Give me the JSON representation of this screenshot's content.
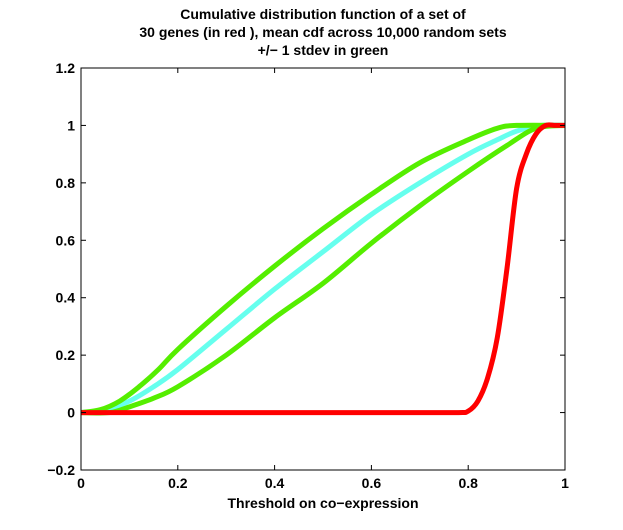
{
  "chart_data": {
    "type": "line",
    "title_lines": [
      "Cumulative distribution function of a set of",
      "30 genes (in red ), mean cdf across 10,000 random sets",
      "+/− 1 stdev in green"
    ],
    "xlabel": "Threshold on co−expression",
    "ylabel": "",
    "xlim": [
      0,
      1
    ],
    "ylim": [
      -0.2,
      1.2
    ],
    "x_ticks": [
      0,
      0.2,
      0.4,
      0.6,
      0.8,
      1
    ],
    "x_tick_labels": [
      "0",
      "0.2",
      "0.4",
      "0.6",
      "0.8",
      "1"
    ],
    "y_ticks": [
      -0.2,
      0,
      0.2,
      0.4,
      0.6,
      0.8,
      1,
      1.2
    ],
    "y_tick_labels": [
      "−0.2",
      "0",
      "0.2",
      "0.4",
      "0.6",
      "0.8",
      "1",
      "1.2"
    ],
    "grid": false,
    "legend": "none",
    "series": [
      {
        "color": "#ff0000",
        "points": [
          [
            0,
            0
          ],
          [
            0.1,
            0
          ],
          [
            0.2,
            0
          ],
          [
            0.3,
            0
          ],
          [
            0.4,
            0
          ],
          [
            0.5,
            0
          ],
          [
            0.6,
            0
          ],
          [
            0.7,
            0
          ],
          [
            0.78,
            0
          ],
          [
            0.8,
            0.005
          ],
          [
            0.82,
            0.04
          ],
          [
            0.84,
            0.12
          ],
          [
            0.86,
            0.26
          ],
          [
            0.88,
            0.5
          ],
          [
            0.9,
            0.78
          ],
          [
            0.92,
            0.9
          ],
          [
            0.94,
            0.97
          ],
          [
            0.96,
            1
          ],
          [
            0.98,
            1
          ],
          [
            1,
            1
          ]
        ]
      },
      {
        "color": "#66ffee",
        "points": [
          [
            0,
            0
          ],
          [
            0.05,
            0.01
          ],
          [
            0.1,
            0.04
          ],
          [
            0.15,
            0.09
          ],
          [
            0.2,
            0.15
          ],
          [
            0.3,
            0.29
          ],
          [
            0.4,
            0.43
          ],
          [
            0.5,
            0.56
          ],
          [
            0.6,
            0.69
          ],
          [
            0.7,
            0.8
          ],
          [
            0.8,
            0.9
          ],
          [
            0.86,
            0.95
          ],
          [
            0.9,
            0.98
          ],
          [
            0.95,
            1
          ],
          [
            1,
            1
          ]
        ]
      },
      {
        "color": "#55ee00",
        "points": [
          [
            0,
            0
          ],
          [
            0.04,
            0.01
          ],
          [
            0.08,
            0.04
          ],
          [
            0.12,
            0.09
          ],
          [
            0.16,
            0.15
          ],
          [
            0.2,
            0.22
          ],
          [
            0.3,
            0.37
          ],
          [
            0.4,
            0.51
          ],
          [
            0.5,
            0.64
          ],
          [
            0.6,
            0.76
          ],
          [
            0.7,
            0.87
          ],
          [
            0.8,
            0.95
          ],
          [
            0.86,
            0.99
          ],
          [
            0.9,
            1
          ],
          [
            1,
            1
          ]
        ]
      },
      {
        "color": "#55ee00",
        "points": [
          [
            0,
            0
          ],
          [
            0.06,
            0
          ],
          [
            0.1,
            0.02
          ],
          [
            0.15,
            0.05
          ],
          [
            0.2,
            0.09
          ],
          [
            0.3,
            0.2
          ],
          [
            0.4,
            0.33
          ],
          [
            0.5,
            0.45
          ],
          [
            0.6,
            0.59
          ],
          [
            0.7,
            0.72
          ],
          [
            0.8,
            0.84
          ],
          [
            0.88,
            0.93
          ],
          [
            0.94,
            0.99
          ],
          [
            1,
            1
          ]
        ]
      }
    ]
  }
}
